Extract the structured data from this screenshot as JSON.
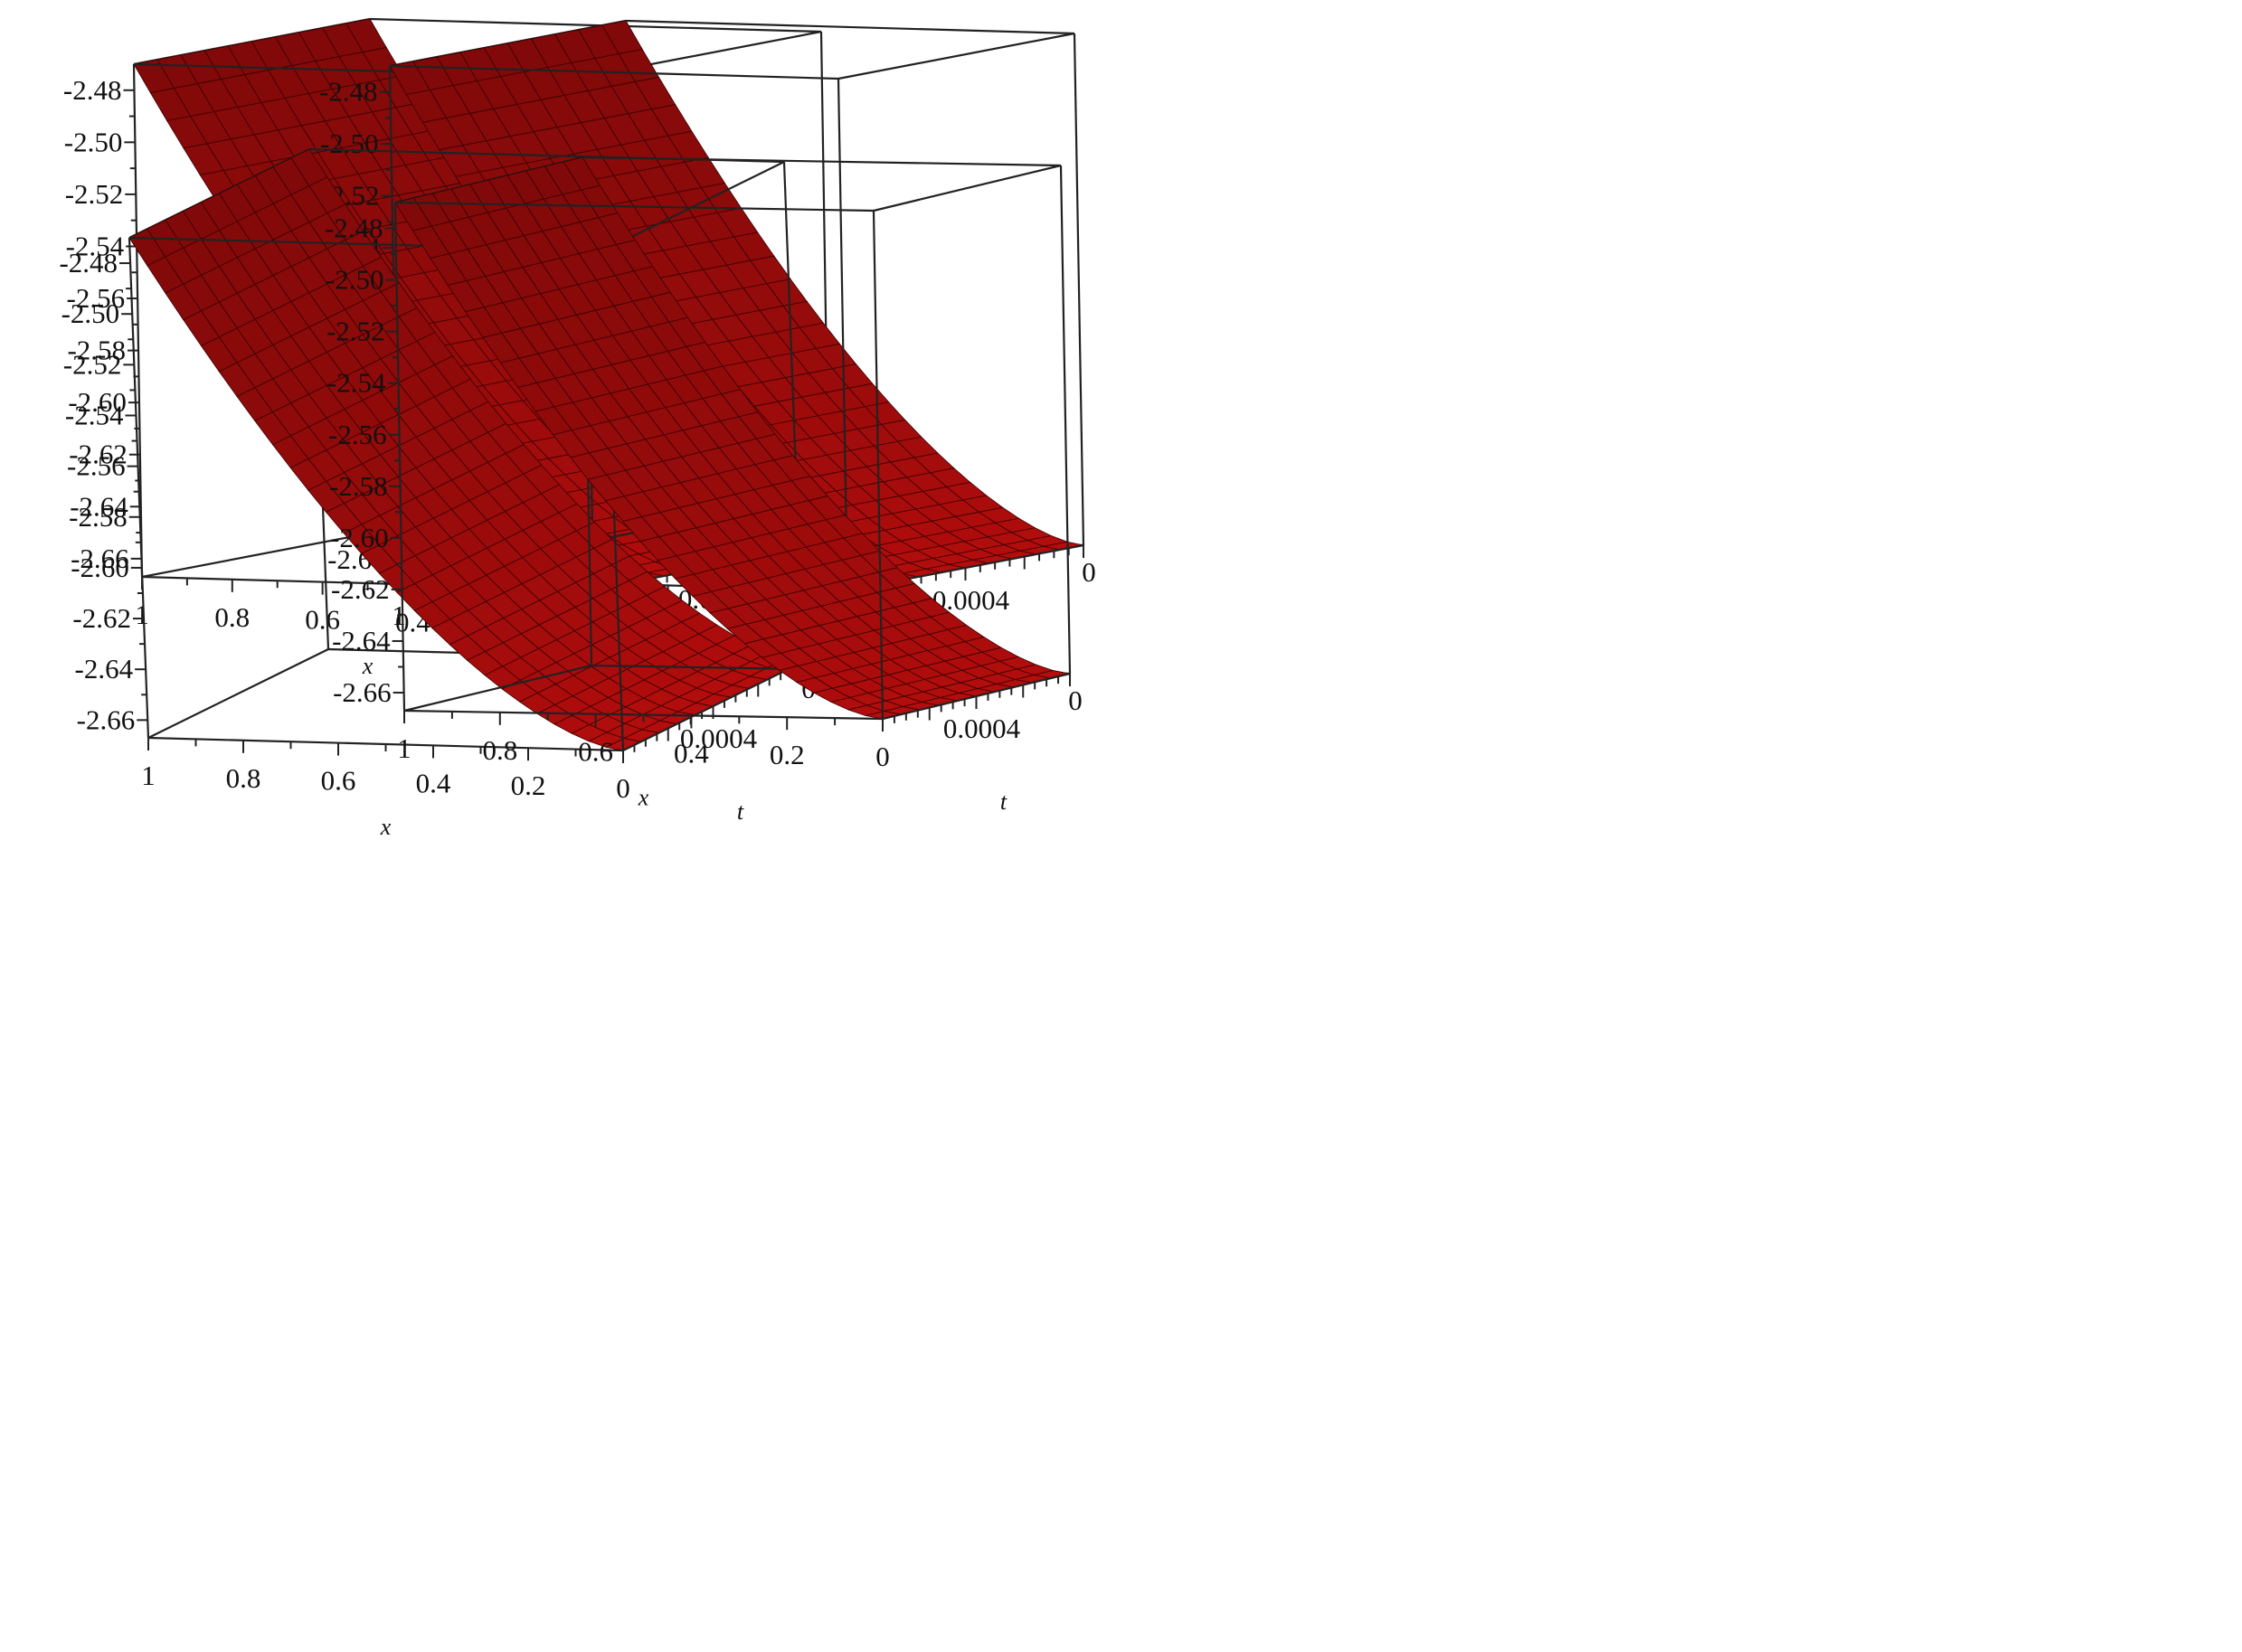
{
  "chart_data": [
    {
      "type": "surface",
      "series": [
        {
          "color": "#b50d0d"
        }
      ],
      "axes": {
        "x": {
          "label": "x",
          "range": [
            0,
            1
          ],
          "ticks": [
            "1",
            "0.8",
            "0.6",
            "0.4",
            "0.2",
            "0"
          ]
        },
        "t": {
          "label": "t",
          "range": [
            0,
            0.0008
          ],
          "ticks": [
            "0.0004",
            "0"
          ]
        },
        "z": {
          "range": [
            -2.667,
            -2.47
          ],
          "ticks": [
            "-2.48",
            "-2.50",
            "-2.52",
            "-2.54",
            "-2.56",
            "-2.58",
            "-2.60",
            "-2.62",
            "-2.64",
            "-2.66"
          ]
        }
      },
      "surface": {
        "z_at_x0": -2.667,
        "z_at_x1": -2.47,
        "shape": "convex decreasing in x, nearly constant in t"
      }
    },
    {
      "type": "surface",
      "series": [
        {
          "color": "#b50d0d"
        }
      ],
      "axes": {
        "x": {
          "label": "x",
          "range": [
            0,
            1
          ],
          "ticks": [
            "1",
            "0.8",
            "0.6",
            "0.4",
            "0.2",
            "0"
          ]
        },
        "t": {
          "label": "t",
          "range": [
            0,
            0.0008
          ],
          "ticks": [
            "0.0004",
            "0"
          ]
        },
        "z": {
          "range": [
            -2.667,
            -2.47
          ],
          "ticks": [
            "-2.48",
            "-2.50",
            "-2.52",
            "-2.54",
            "-2.56",
            "-2.58",
            "-2.60",
            "-2.62",
            "-2.64",
            "-2.66"
          ]
        }
      },
      "surface": {
        "z_at_x0": -2.667,
        "z_at_x1": -2.47,
        "shape": "convex decreasing in x, nearly constant in t"
      }
    },
    {
      "type": "surface",
      "series": [
        {
          "color": "#b50d0d"
        }
      ],
      "axes": {
        "x": {
          "label": "x",
          "range": [
            0,
            1
          ],
          "ticks": [
            "1",
            "0.8",
            "0.6",
            "0.4",
            "0.2",
            "0"
          ]
        },
        "t": {
          "label": "t",
          "range": [
            0,
            0.0008
          ],
          "ticks": [
            "0.0004",
            "0"
          ]
        },
        "z": {
          "range": [
            -2.667,
            -2.47
          ],
          "ticks": [
            "-2.48",
            "-2.50",
            "-2.52",
            "-2.54",
            "-2.56",
            "-2.58",
            "-2.60",
            "-2.62",
            "-2.64",
            "-2.66"
          ]
        }
      },
      "surface": {
        "z_at_x0": -2.667,
        "z_at_x1": -2.47,
        "shape": "convex decreasing in x, nearly constant in t"
      }
    },
    {
      "type": "surface",
      "series": [
        {
          "color": "#b50d0d"
        }
      ],
      "axes": {
        "x": {
          "label": "x",
          "range": [
            0,
            1
          ],
          "ticks": [
            "1",
            "0.8",
            "0.6",
            "0.4",
            "0.2",
            "0"
          ]
        },
        "t": {
          "label": "t",
          "range": [
            0,
            0.0008
          ],
          "ticks": [
            "0.0004",
            "0"
          ]
        },
        "z": {
          "range": [
            -2.667,
            -2.47
          ],
          "ticks": [
            "-2.48",
            "-2.50",
            "-2.52",
            "-2.54",
            "-2.56",
            "-2.58",
            "-2.60",
            "-2.62",
            "-2.64",
            "-2.66"
          ]
        }
      },
      "surface": {
        "z_at_x0": -2.667,
        "z_at_x1": -2.47,
        "shape": "convex decreasing in x, nearly constant in t"
      }
    }
  ]
}
